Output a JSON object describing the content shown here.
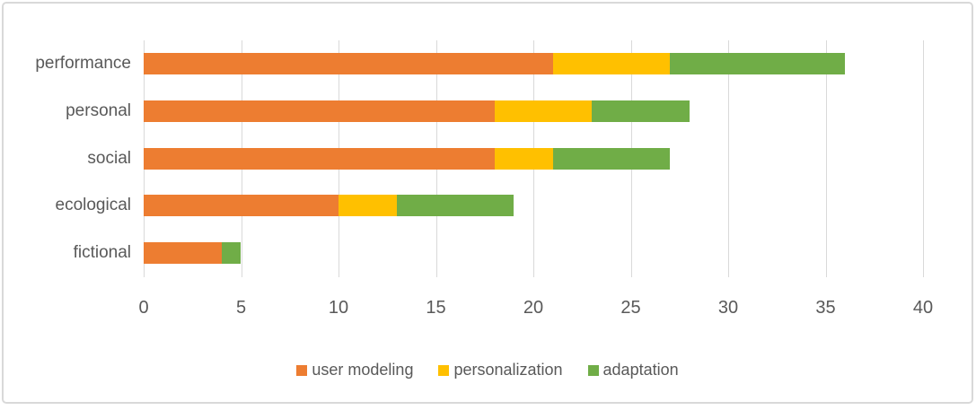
{
  "chart_data": {
    "type": "bar",
    "orientation": "horizontal",
    "stacked": true,
    "title": "",
    "categories": [
      "performance",
      "personal",
      "social",
      "ecological",
      "fictional"
    ],
    "series": [
      {
        "name": "user modeling",
        "color": "#ED7D31",
        "values": [
          21,
          18,
          18,
          10,
          4
        ]
      },
      {
        "name": "personalization",
        "color": "#FFC000",
        "values": [
          6,
          5,
          3,
          3,
          0
        ]
      },
      {
        "name": "adaptation",
        "color": "#70AD47",
        "values": [
          9,
          5,
          6,
          6,
          1
        ]
      }
    ],
    "x_axis": {
      "min": 0,
      "max": 40,
      "tick_step": 5,
      "tick_labels": [
        "0",
        "5",
        "10",
        "15",
        "20",
        "25",
        "30",
        "35",
        "40"
      ]
    },
    "legend": {
      "position": "bottom",
      "entries": [
        "user modeling",
        "personalization",
        "adaptation"
      ]
    },
    "grid": true,
    "colors": {
      "gridline": "#D9D9D9",
      "axis_text": "#595959",
      "frame_border": "#D9D9D9",
      "background": "#FFFFFF"
    }
  }
}
